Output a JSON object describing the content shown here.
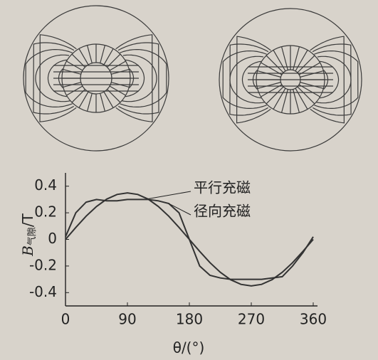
{
  "chart_data": {
    "type": "line",
    "x_label": "θ/(°)",
    "y_label": "B",
    "y_label_sub": "气隙",
    "y_label_unit": "/T",
    "x": [
      0,
      15,
      30,
      45,
      60,
      75,
      90,
      105,
      120,
      135,
      150,
      165,
      180,
      195,
      210,
      225,
      240,
      255,
      270,
      285,
      300,
      315,
      330,
      345,
      360
    ],
    "series": [
      {
        "name": "平行充磁",
        "color": "#333333",
        "values": [
          0,
          0.09,
          0.175,
          0.247,
          0.303,
          0.338,
          0.35,
          0.338,
          0.303,
          0.247,
          0.175,
          0.09,
          0,
          -0.09,
          -0.175,
          -0.247,
          -0.303,
          -0.338,
          -0.35,
          -0.338,
          -0.303,
          -0.247,
          -0.175,
          -0.09,
          0
        ]
      },
      {
        "name": "径向充磁",
        "color": "#333333",
        "values": [
          0.02,
          0.2,
          0.28,
          0.3,
          0.29,
          0.29,
          0.3,
          0.3,
          0.3,
          0.29,
          0.27,
          0.2,
          0,
          -0.2,
          -0.27,
          -0.29,
          -0.3,
          -0.3,
          -0.3,
          -0.3,
          -0.29,
          -0.28,
          -0.2,
          -0.1,
          0.02
        ]
      }
    ],
    "xlim": [
      0,
      360
    ],
    "xticks": [
      0,
      90,
      180,
      270,
      360
    ],
    "ylim": [
      -0.5,
      0.5
    ],
    "yticks": [
      {
        "value": 0.4,
        "label": "0.4"
      },
      {
        "value": 0.2,
        "label": "0.2"
      },
      0,
      {
        "value": -0.2,
        "label": "-0.2"
      },
      {
        "value": -0.4,
        "label": "-0.4"
      }
    ],
    "grid": false
  }
}
